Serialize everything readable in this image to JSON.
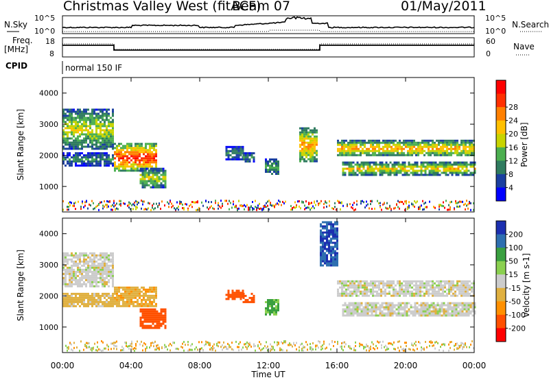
{
  "header": {
    "title": "Christmas Valley West (fitACF)",
    "beam": "Beam 07",
    "date": "01/May/2011"
  },
  "top_panels": {
    "nsky_label": "N.Sky",
    "nsearch_label": "N.Search",
    "noise_ticks_left": [
      "10^5",
      "10^0"
    ],
    "noise_ticks_right": [
      "10^5",
      "10^0"
    ],
    "freq_label": "Freq.",
    "freq_unit": "[MHz]",
    "freq_ticks": [
      "18",
      "8"
    ],
    "nave_label": "Nave",
    "nave_ticks": [
      "60",
      "0"
    ],
    "cpid_label": "CPID",
    "cpid_value": "normal 150 IF"
  },
  "chart_data": [
    {
      "type": "heatmap",
      "name": "power",
      "ylabel": "Slant Range [km]",
      "yticks": [
        1000,
        2000,
        3000,
        4000
      ],
      "ylim": [
        180,
        4500
      ],
      "colorbar_label": "Power [dB]",
      "colorbar_ticks": [
        4,
        8,
        12,
        16,
        20,
        24,
        28
      ],
      "colors": [
        "#0000ff",
        "#1a3fa0",
        "#2f7b5f",
        "#4caf50",
        "#c8d400",
        "#ffc000",
        "#ff8000",
        "#ff3000",
        "#ff0000"
      ],
      "regions": [
        {
          "t": [
            0.0,
            3.0
          ],
          "r": [
            2200,
            3500
          ],
          "level": 14
        },
        {
          "t": [
            0.0,
            3.0
          ],
          "r": [
            1700,
            2100
          ],
          "level": 8
        },
        {
          "t": [
            3.0,
            5.5
          ],
          "r": [
            1500,
            2400
          ],
          "level": 24
        },
        {
          "t": [
            4.5,
            6.0
          ],
          "r": [
            1000,
            1600
          ],
          "level": 14
        },
        {
          "t": [
            9.5,
            10.5
          ],
          "r": [
            1900,
            2300
          ],
          "level": 8
        },
        {
          "t": [
            10.5,
            11.2
          ],
          "r": [
            1800,
            2100
          ],
          "level": 8
        },
        {
          "t": [
            11.8,
            12.6
          ],
          "r": [
            1400,
            1900
          ],
          "level": 10
        },
        {
          "t": [
            13.8,
            14.8
          ],
          "r": [
            1800,
            2900
          ],
          "level": 18
        },
        {
          "t": [
            16.0,
            24.0
          ],
          "r": [
            2000,
            2500
          ],
          "level": 18
        },
        {
          "t": [
            16.3,
            24.0
          ],
          "r": [
            1400,
            1800
          ],
          "level": 16
        }
      ]
    },
    {
      "type": "heatmap",
      "name": "velocity",
      "ylabel": "Slant Range [km]",
      "yticks": [
        1000,
        2000,
        3000,
        4000
      ],
      "ylim": [
        180,
        4500
      ],
      "colorbar_label": "Velocity [m s-1]",
      "colorbar_ticks": [
        200,
        100,
        50,
        15,
        -15,
        -50,
        -100,
        -200
      ],
      "colors": [
        "#1c2fb0",
        "#2e6fb0",
        "#3aa040",
        "#8bd050",
        "#cccccc",
        "#e0b040",
        "#ff9000",
        "#ff5000",
        "#ff0000"
      ],
      "regions": [
        {
          "t": [
            0.0,
            3.0
          ],
          "r": [
            2300,
            3400
          ],
          "value": 0
        },
        {
          "t": [
            0.0,
            3.0
          ],
          "r": [
            1700,
            2100
          ],
          "value": -30
        },
        {
          "t": [
            3.0,
            5.5
          ],
          "r": [
            1700,
            2300
          ],
          "value": -40
        },
        {
          "t": [
            4.5,
            6.0
          ],
          "r": [
            1000,
            1600
          ],
          "value": -150
        },
        {
          "t": [
            9.5,
            10.5
          ],
          "r": [
            1900,
            2200
          ],
          "value": -150
        },
        {
          "t": [
            10.5,
            11.2
          ],
          "r": [
            1800,
            2100
          ],
          "value": -150
        },
        {
          "t": [
            11.8,
            12.6
          ],
          "r": [
            1400,
            1900
          ],
          "value": 60
        },
        {
          "t": [
            15.0,
            16.0
          ],
          "r": [
            3000,
            4400
          ],
          "value": 200
        },
        {
          "t": [
            16.0,
            24.0
          ],
          "r": [
            2000,
            2500
          ],
          "value": 0
        },
        {
          "t": [
            16.3,
            24.0
          ],
          "r": [
            1400,
            1800
          ],
          "value": 0
        }
      ]
    }
  ],
  "x_axis": {
    "xlabel": "Time UT",
    "ticks": [
      "00:00",
      "04:00",
      "08:00",
      "12:00",
      "16:00",
      "20:00",
      "00:00"
    ]
  }
}
